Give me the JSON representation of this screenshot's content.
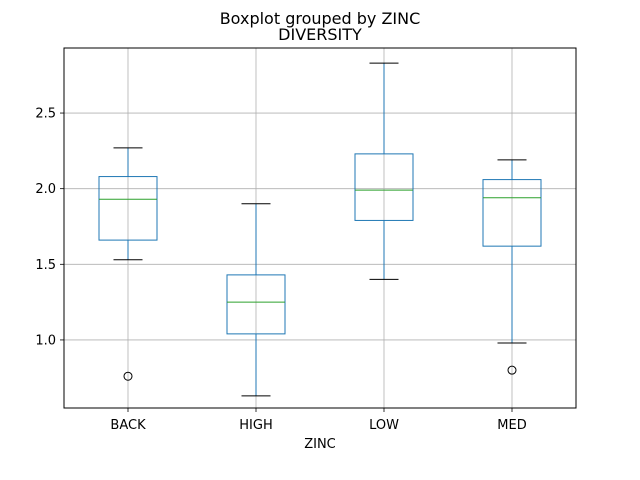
{
  "chart_data": {
    "type": "box",
    "suptitle": "Boxplot grouped by ZINC",
    "title": "DIVERSITY",
    "xlabel": "ZINC",
    "ylabel": "",
    "grid": true,
    "ylim": [
      0.55,
      2.93
    ],
    "yticks": [
      1.0,
      1.5,
      2.0,
      2.5
    ],
    "ytick_labels": [
      "1.0",
      "1.5",
      "2.0",
      "2.5"
    ],
    "categories": [
      "BACK",
      "HIGH",
      "LOW",
      "MED"
    ],
    "boxes": [
      {
        "category": "BACK",
        "whisker_low": 1.53,
        "q1": 1.66,
        "median": 1.93,
        "q3": 2.08,
        "whisker_high": 2.27,
        "outliers": [
          0.76
        ]
      },
      {
        "category": "HIGH",
        "whisker_low": 0.63,
        "q1": 1.04,
        "median": 1.25,
        "q3": 1.43,
        "whisker_high": 1.9,
        "outliers": []
      },
      {
        "category": "LOW",
        "whisker_low": 1.4,
        "q1": 1.79,
        "median": 1.99,
        "q3": 2.23,
        "whisker_high": 2.83,
        "outliers": []
      },
      {
        "category": "MED",
        "whisker_low": 0.98,
        "q1": 1.62,
        "median": 1.94,
        "q3": 2.06,
        "whisker_high": 2.19,
        "outliers": [
          0.8
        ]
      }
    ],
    "colors": {
      "box": "#1f77b4",
      "median": "#2ca02c",
      "whisker_cap": "#000000",
      "outlier": "#000000",
      "grid": "#b0b0b0",
      "axes": "#000000"
    }
  }
}
